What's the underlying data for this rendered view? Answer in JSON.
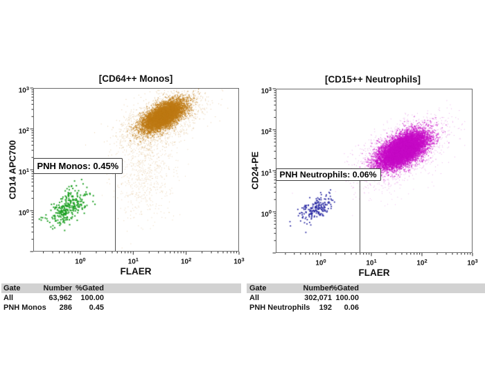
{
  "chart_data": [
    {
      "type": "scatter",
      "title": "[CD64++ Monos]",
      "xlabel": "FLAER",
      "ylabel": "CD14 APC700",
      "x_scale": "log",
      "y_scale": "log",
      "x_log_range": [
        -0.89,
        3
      ],
      "y_log_range": [
        -1,
        3
      ],
      "x_tick_exponents": [
        0,
        1,
        2,
        3
      ],
      "y_tick_exponents": [
        3,
        2,
        1,
        0
      ],
      "grid": false,
      "gate": {
        "label": "PNH Monos: 0.45%",
        "x_log_max": 0.67,
        "y_log_max": 0.92
      },
      "clusters": [
        {
          "name": "cd64-monos-core",
          "color": "#BE7A15",
          "n": 6500,
          "cx": 1.59,
          "cy": 2.33,
          "sMajor": 0.24,
          "sMinor": 0.115,
          "angle": 42,
          "size": 1.3,
          "alpha": 0.85
        },
        {
          "name": "cd64-monos-halo",
          "color": "#BE7A15",
          "n": 2100,
          "cx": 1.57,
          "cy": 2.27,
          "sMajor": 0.46,
          "sMinor": 0.24,
          "angle": 42,
          "size": 1.0,
          "alpha": 0.4
        },
        {
          "name": "cd64-monos-tail",
          "color": "#BE7A15",
          "n": 620,
          "cx": 1.24,
          "cy": 0.95,
          "sMajor": 0.6,
          "sMinor": 0.27,
          "angle": 88,
          "size": 1.0,
          "alpha": 0.33
        },
        {
          "name": "pnh-monos-events",
          "color": "#1FA125",
          "n": 286,
          "cx": -0.235,
          "cy": 0.07,
          "sMajor": 0.27,
          "sMinor": 0.14,
          "angle": 55,
          "size": 2.0,
          "alpha": 1
        }
      ]
    },
    {
      "type": "scatter",
      "title": "[CD15++ Neutrophils]",
      "xlabel": "FLAER",
      "ylabel": "CD24-PE",
      "x_scale": "log",
      "y_scale": "log",
      "x_log_range": [
        -0.89,
        3
      ],
      "y_log_range": [
        -1,
        3
      ],
      "x_tick_exponents": [
        0,
        1,
        2,
        3
      ],
      "y_tick_exponents": [
        3,
        2,
        1,
        0
      ],
      "grid": false,
      "gate": {
        "label": "PNH Neutrophils: 0.06%",
        "x_log_max": 0.79,
        "y_log_max": 0.77
      },
      "clusters": [
        {
          "name": "cd15-neutrophils-core",
          "color": "#C70CC7",
          "n": 10000,
          "cx": 1.63,
          "cy": 1.51,
          "sMajor": 0.28,
          "sMinor": 0.145,
          "angle": 40,
          "size": 1.3,
          "alpha": 0.85
        },
        {
          "name": "cd15-neutrophils-halo",
          "color": "#C70CC7",
          "n": 2200,
          "cx": 1.6,
          "cy": 1.47,
          "sMajor": 0.5,
          "sMinor": 0.26,
          "angle": 40,
          "size": 1.0,
          "alpha": 0.35
        },
        {
          "name": "cd15-neutrophils-drizzle",
          "color": "#C70CC7",
          "n": 70,
          "cx": 1.45,
          "cy": 0.75,
          "sMajor": 0.4,
          "sMinor": 0.3,
          "angle": 45,
          "size": 1.0,
          "alpha": 0.3
        },
        {
          "name": "pnh-neutrophils-events",
          "color": "#2A2AA3",
          "n": 192,
          "cx": -0.11,
          "cy": 0.05,
          "sMajor": 0.21,
          "sMinor": 0.11,
          "angle": 45,
          "size": 1.8,
          "alpha": 1
        }
      ]
    }
  ],
  "tables": [
    {
      "headers": [
        "Gate",
        "Number",
        "%Gated"
      ],
      "rows": [
        {
          "gate": "All",
          "number": "63,962",
          "pct": "100.00"
        },
        {
          "gate": "PNH Monos",
          "number": "286",
          "pct": "0.45"
        }
      ]
    },
    {
      "headers": [
        "Gate",
        "Number",
        "%Gated"
      ],
      "rows": [
        {
          "gate": "All",
          "number": "302,071",
          "pct": "100.00"
        },
        {
          "gate": "PNH Neutrophils",
          "number": "192",
          "pct": "0.06"
        }
      ]
    }
  ]
}
